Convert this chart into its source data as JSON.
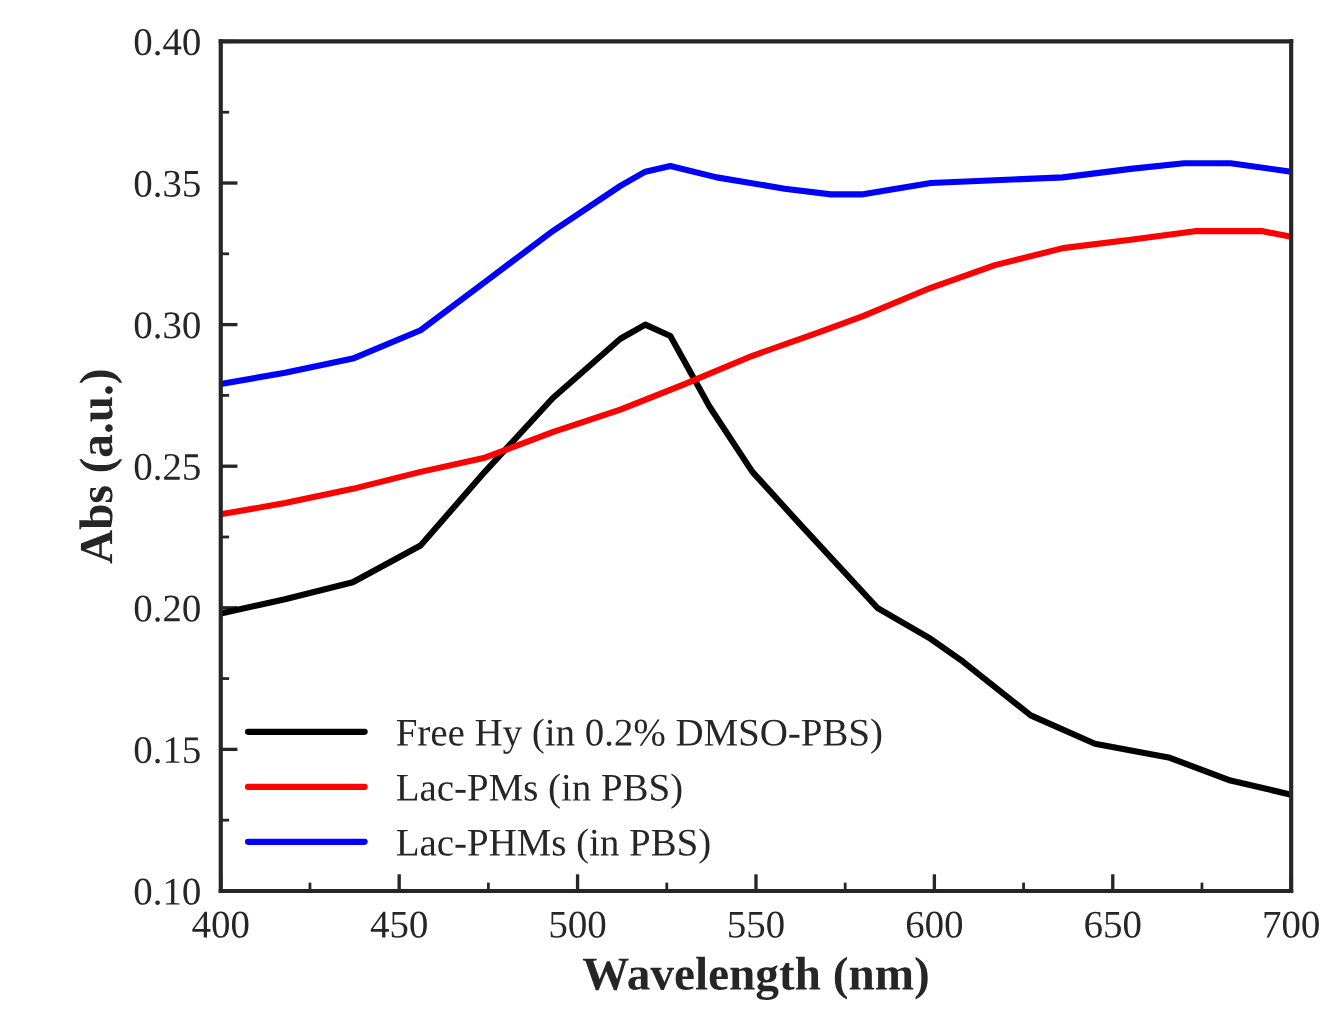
{
  "chart_data": {
    "type": "line",
    "xlabel": "Wavelength (nm)",
    "ylabel": "Abs (a.u.)",
    "xlim": [
      400,
      700
    ],
    "xticks": [
      400,
      450,
      500,
      550,
      600,
      650,
      700
    ],
    "ylim": [
      0.1,
      0.4
    ],
    "yticks": [
      {
        "value": 0.1,
        "label": "0.10"
      },
      0.15,
      {
        "value": 0.2,
        "label": "0.20"
      },
      0.25,
      {
        "value": 0.3,
        "label": "0.30"
      },
      0.35,
      {
        "value": 0.4,
        "label": "0.40"
      }
    ],
    "grid": false,
    "legend": "bottom left",
    "marker": "none",
    "line_style": "solid",
    "series": [
      {
        "name": "Free Hy (in 0.2% DMSO-PBS)",
        "color": "#000000",
        "x": [
          400,
          418,
          437,
          456,
          474,
          493,
          512,
          519,
          526,
          537,
          549,
          562,
          584,
          599,
          608,
          627,
          645,
          666,
          683,
          700
        ],
        "values": [
          0.198,
          0.203,
          0.209,
          0.222,
          0.248,
          0.274,
          0.295,
          0.3,
          0.296,
          0.271,
          0.248,
          0.23,
          0.2,
          0.189,
          0.181,
          0.162,
          0.152,
          0.147,
          0.139,
          0.134
        ]
      },
      {
        "name": "Lac-PMs (in PBS)",
        "color": "#ff0000",
        "x": [
          400,
          418,
          437,
          456,
          474,
          493,
          512,
          530,
          549,
          567,
          580,
          599,
          617,
          636,
          655,
          673,
          692,
          700
        ],
        "values": [
          0.233,
          0.237,
          0.242,
          0.248,
          0.253,
          0.262,
          0.27,
          0.279,
          0.289,
          0.297,
          0.303,
          0.313,
          0.321,
          0.327,
          0.33,
          0.333,
          0.333,
          0.331
        ]
      },
      {
        "name": "Lac-PHMs (in PBS)",
        "color": "#0000ff",
        "x": [
          400,
          418,
          437,
          456,
          474,
          493,
          512,
          519,
          526,
          539,
          558,
          571,
          580,
          599,
          617,
          636,
          655,
          670,
          683,
          700
        ],
        "values": [
          0.279,
          0.283,
          0.288,
          0.298,
          0.315,
          0.333,
          0.349,
          0.354,
          0.356,
          0.352,
          0.348,
          0.346,
          0.346,
          0.35,
          0.351,
          0.352,
          0.355,
          0.357,
          0.357,
          0.354
        ]
      }
    ]
  }
}
